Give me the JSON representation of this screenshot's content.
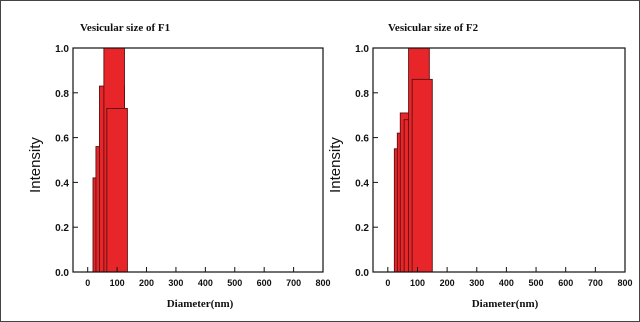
{
  "chart_data": [
    {
      "type": "bar",
      "title": "Vesicular size of F1",
      "xlabel": "Diameter(nm)",
      "ylabel": "Intensity",
      "xlim": [
        -50,
        800
      ],
      "ylim": [
        0,
        1.0
      ],
      "xticks": [
        0,
        100,
        200,
        300,
        400,
        500,
        600,
        700,
        800
      ],
      "yticks": [
        "0.0",
        "0.2",
        "0.4",
        "0.6",
        "0.8",
        "1.0"
      ],
      "grid": false,
      "legend": "none",
      "bar_color": "#e8262a",
      "bars": [
        {
          "x0": 18,
          "x1": 125,
          "value": 0.42
        },
        {
          "x0": 28,
          "x1": 125,
          "value": 0.56
        },
        {
          "x0": 40,
          "x1": 125,
          "value": 0.83
        },
        {
          "x0": 55,
          "x1": 125,
          "value": 1.0
        },
        {
          "x0": 65,
          "x1": 135,
          "value": 0.73
        }
      ]
    },
    {
      "type": "bar",
      "title": "Vesicular size of F2",
      "xlabel": "Diameter(nm)",
      "ylabel": "Intensity",
      "xlim": [
        -50,
        800
      ],
      "ylim": [
        0,
        1.0
      ],
      "xticks": [
        0,
        100,
        200,
        300,
        400,
        500,
        600,
        700,
        800
      ],
      "yticks": [
        "0.0",
        "0.2",
        "0.4",
        "0.6",
        "0.8",
        "1.0"
      ],
      "grid": false,
      "legend": "none",
      "bar_color": "#e8262a",
      "bars": [
        {
          "x0": 22,
          "x1": 140,
          "value": 0.55
        },
        {
          "x0": 32,
          "x1": 140,
          "value": 0.62
        },
        {
          "x0": 42,
          "x1": 140,
          "value": 0.71
        },
        {
          "x0": 55,
          "x1": 140,
          "value": 0.68
        },
        {
          "x0": 70,
          "x1": 140,
          "value": 1.0
        },
        {
          "x0": 82,
          "x1": 150,
          "value": 0.86
        }
      ]
    }
  ]
}
